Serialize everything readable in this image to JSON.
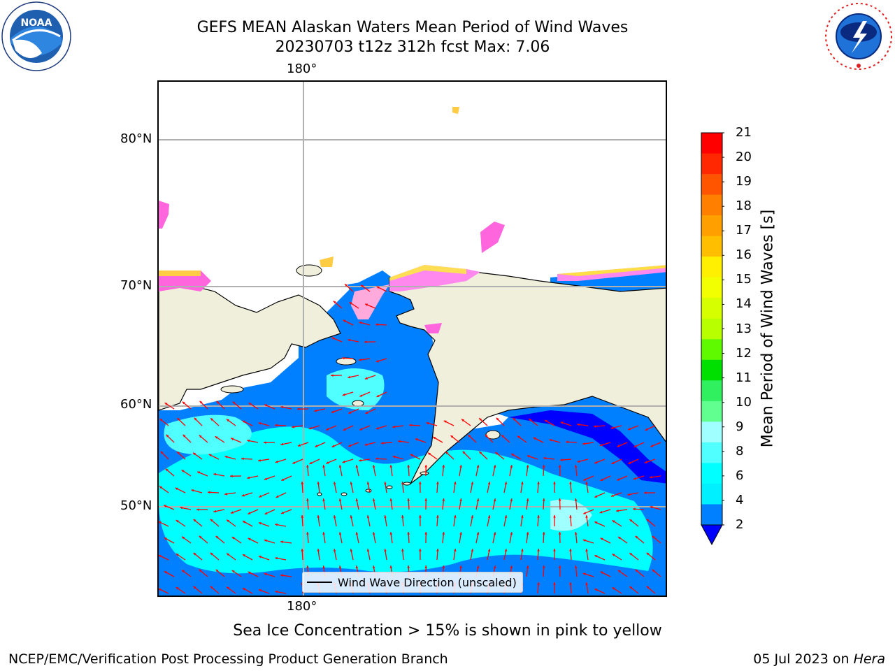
{
  "title": {
    "line1": "GEFS MEAN Alaskan Waters Mean Period of Wind Waves",
    "line2": "20230703 t12z 312h fcst    Max: 7.06"
  },
  "logos": {
    "left": {
      "name": "NOAA",
      "text": "NOAA",
      "ring_text": "NATIONAL OCEANIC AND ATMOSPHERIC ADMINISTRATION · U.S. DEPARTMENT OF COMMERCE"
    },
    "right": {
      "name": "National Weather Service",
      "ring_text": "NATIONAL WEATHER SERVICE"
    }
  },
  "map": {
    "lon_label_top": "180°",
    "lon_label_bottom": "180°",
    "lat_labels": [
      "80°N",
      "70°N",
      "60°N",
      "50°N"
    ],
    "colors": {
      "ocean": "#0080ff",
      "land": "#efefdc",
      "arrow": "#ff0000",
      "grid": "#b0b0b0",
      "coast": "#000000"
    },
    "legend": "Wind Wave Direction (unscaled)"
  },
  "colorbar": {
    "label": "Mean Period of Wind Waves [s]",
    "ticks": [
      "21",
      "20",
      "19",
      "18",
      "17",
      "16",
      "15",
      "14",
      "13",
      "12",
      "11",
      "10",
      "9",
      "8",
      "6",
      "4",
      "2"
    ],
    "under_color": "#0000ff",
    "colors": [
      "#ff0000",
      "#ff2800",
      "#ff5500",
      "#ff7f00",
      "#ff9f00",
      "#ffbf00",
      "#ffef00",
      "#f2ff00",
      "#d6ff00",
      "#b8ff00",
      "#5ffa00",
      "#00e000",
      "#30f060",
      "#60ff90",
      "#a0ffff",
      "#50ffff",
      "#00ffff",
      "#00f0ff",
      "#0080ff"
    ]
  },
  "note": "Sea Ice Concentration > 15% is shown in pink to yellow",
  "footer": {
    "left": "NCEP/EMC/Verification Post Processing Product Generation Branch",
    "right_date": "05 Jul 2023 on ",
    "right_machine": "Hera"
  }
}
